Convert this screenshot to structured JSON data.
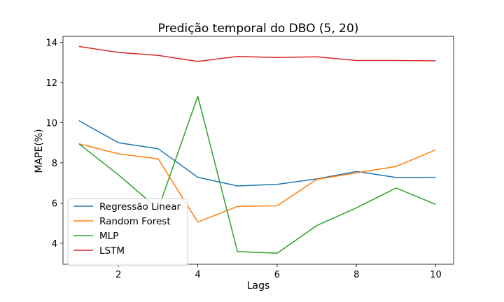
{
  "chart_data": {
    "type": "line",
    "title": "Predição temporal do DBO (5, 20)",
    "xlabel": "Lags",
    "ylabel": "MAPE(%)",
    "xlim": [
      0.6,
      10.45
    ],
    "ylim": [
      2.95,
      14.3
    ],
    "xticks": [
      2,
      4,
      6,
      8,
      10
    ],
    "yticks": [
      4,
      6,
      8,
      10,
      12,
      14
    ],
    "grid": false,
    "legend_position": "lower-left",
    "x": [
      1,
      2,
      3,
      4,
      5,
      6,
      7,
      8,
      9,
      10
    ],
    "series": [
      {
        "name": "Regressão Linear",
        "color": "#1f77b4",
        "values": [
          10.1,
          9.0,
          8.7,
          7.28,
          6.85,
          6.93,
          7.2,
          7.57,
          7.27,
          7.28
        ]
      },
      {
        "name": "Random Forest",
        "color": "#ff7f0e",
        "values": [
          8.95,
          8.45,
          8.2,
          5.05,
          5.83,
          5.86,
          7.18,
          7.5,
          7.82,
          8.65
        ]
      },
      {
        "name": "MLP",
        "color": "#2ca02c",
        "values": [
          8.95,
          7.4,
          5.7,
          11.32,
          3.58,
          3.5,
          4.88,
          5.76,
          6.75,
          5.93
        ]
      },
      {
        "name": "LSTM",
        "color": "#d62728",
        "values": [
          13.8,
          13.5,
          13.35,
          13.05,
          13.3,
          13.25,
          13.28,
          13.1,
          13.1,
          13.08
        ]
      }
    ]
  }
}
